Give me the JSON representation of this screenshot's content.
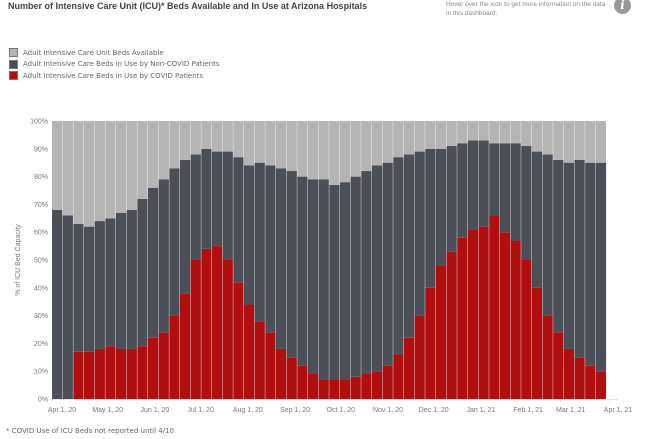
{
  "title": "Number of Intensive Care Unit (ICU)* Beds Available and In Use at Arizona Hospitals",
  "hover_note": "Hover over the icon to get more information on the data in this dashboard.",
  "info_icon": "info-icon",
  "footnote": "* COVID Use of ICU Beds  not reported until 4/10",
  "chart_data": {
    "type": "bar",
    "stacked": true,
    "ylabel": "% of ICU Bed Capacity",
    "ylim": [
      0,
      100
    ],
    "yticks": [
      "0%",
      "10%",
      "20%",
      "30%",
      "40%",
      "50%",
      "60%",
      "70%",
      "80%",
      "90%",
      "100%"
    ],
    "xticks": [
      "Apr 1, 20",
      "May 1, 20",
      "Jun 1, 20",
      "Jul 1, 20",
      "Aug 1, 20",
      "Sep 1, 20",
      "Oct 1, 20",
      "Nov 1, 20",
      "Dec 1, 20",
      "Jan 1, 21",
      "Feb 1, 21",
      "Mar 1, 21",
      "Apr 1, 21"
    ],
    "x_range": [
      "2020-04-01",
      "2021-04-01"
    ],
    "legend_position": "top-left",
    "x": [
      "2020-04-01",
      "2020-04-08",
      "2020-04-15",
      "2020-04-22",
      "2020-04-29",
      "2020-05-06",
      "2020-05-13",
      "2020-05-20",
      "2020-05-27",
      "2020-06-03",
      "2020-06-10",
      "2020-06-17",
      "2020-06-24",
      "2020-07-01",
      "2020-07-08",
      "2020-07-15",
      "2020-07-22",
      "2020-07-29",
      "2020-08-05",
      "2020-08-12",
      "2020-08-19",
      "2020-08-26",
      "2020-09-02",
      "2020-09-09",
      "2020-09-16",
      "2020-09-23",
      "2020-09-30",
      "2020-10-07",
      "2020-10-14",
      "2020-10-21",
      "2020-10-28",
      "2020-11-04",
      "2020-11-11",
      "2020-11-18",
      "2020-11-25",
      "2020-12-02",
      "2020-12-09",
      "2020-12-16",
      "2020-12-23",
      "2020-12-30",
      "2021-01-06",
      "2021-01-13",
      "2021-01-20",
      "2021-01-27",
      "2021-02-03",
      "2021-02-10",
      "2021-02-17",
      "2021-02-24",
      "2021-03-03",
      "2021-03-10",
      "2021-03-17",
      "2021-03-24"
    ],
    "series": [
      {
        "name": "Adult Intensive Care Beds in Use by COVID Patients",
        "color": "#b00f0f",
        "values": [
          0,
          0,
          17,
          17,
          18,
          19,
          18,
          18,
          19,
          22,
          24,
          30,
          38,
          50,
          54,
          55,
          50,
          42,
          34,
          28,
          24,
          18,
          15,
          12,
          9,
          7,
          7,
          7,
          8,
          9,
          10,
          12,
          16,
          22,
          30,
          40,
          48,
          53,
          58,
          61,
          62,
          66,
          60,
          57,
          50,
          40,
          30,
          24,
          18,
          15,
          12,
          10
        ]
      },
      {
        "name": "Adult Intensive Care Beds in Use by Non-COVID Patients",
        "color": "#4b4f57",
        "values": [
          68,
          66,
          46,
          45,
          46,
          46,
          49,
          50,
          53,
          54,
          55,
          53,
          48,
          38,
          36,
          34,
          39,
          45,
          50,
          57,
          60,
          65,
          67,
          68,
          70,
          72,
          70,
          71,
          72,
          73,
          74,
          73,
          71,
          66,
          59,
          50,
          42,
          38,
          34,
          32,
          31,
          26,
          32,
          35,
          41,
          49,
          58,
          62,
          67,
          71,
          73,
          75
        ]
      },
      {
        "name": "Adult Intensive Care Unit Beds Available",
        "color": "#b4b4b4",
        "values": [
          32,
          34,
          37,
          38,
          36,
          35,
          33,
          32,
          28,
          24,
          21,
          17,
          14,
          12,
          10,
          11,
          11,
          13,
          16,
          15,
          16,
          17,
          18,
          20,
          21,
          21,
          23,
          22,
          20,
          18,
          16,
          15,
          13,
          12,
          11,
          10,
          10,
          9,
          8,
          7,
          7,
          8,
          8,
          8,
          9,
          11,
          12,
          14,
          15,
          14,
          15,
          15
        ]
      }
    ]
  }
}
